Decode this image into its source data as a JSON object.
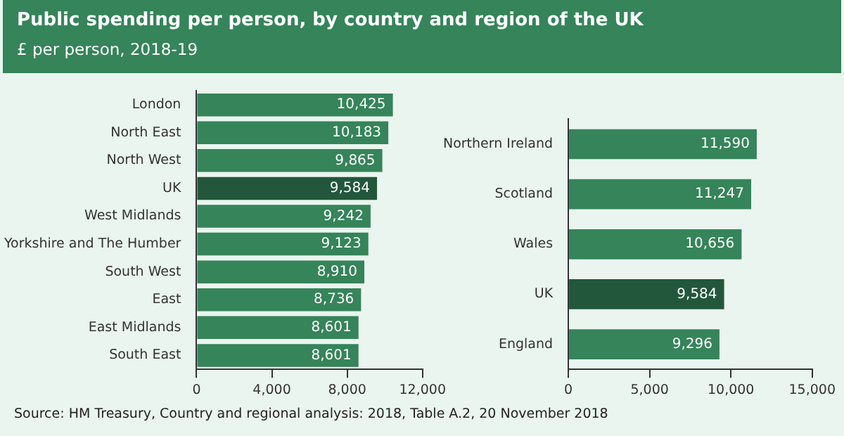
{
  "chart_data": [
    {
      "type": "bar",
      "orientation": "horizontal",
      "title": "Public spending per person, by country and region of the UK",
      "subtitle": "£ per person, 2018-19",
      "categories": [
        "London",
        "North East",
        "North West",
        "UK",
        "West Midlands",
        "Yorkshire and The Humber",
        "South West",
        "East",
        "East Midlands",
        "South East"
      ],
      "values": [
        10425,
        10183,
        9865,
        9584,
        9242,
        9123,
        8910,
        8736,
        8601,
        8601
      ],
      "value_labels": [
        "10,425",
        "10,183",
        "9,865",
        "9,584",
        "9,242",
        "9,123",
        "8,910",
        "8,736",
        "8,601",
        "8,601"
      ],
      "colors": [
        "#35845a",
        "#35845a",
        "#35845a",
        "#22573b",
        "#35845a",
        "#35845a",
        "#35845a",
        "#35845a",
        "#35845a",
        "#35845a"
      ],
      "xlim": [
        0,
        12000
      ],
      "xticks": [
        0,
        {
          "value": 4000,
          "label": "4,000"
        },
        {
          "value": 8000,
          "label": "8,000"
        },
        {
          "value": 12000,
          "label": "12,000"
        }
      ],
      "grid": false,
      "legend": false,
      "annotations": [
        "Source: HM Treasury, Country and regional analysis: 2018, Table A.2, 20 November 2018"
      ]
    },
    {
      "type": "bar",
      "orientation": "horizontal",
      "categories": [
        "Northern Ireland",
        "Scotland",
        "Wales",
        "UK",
        "England"
      ],
      "values": [
        11590,
        11247,
        10656,
        9584,
        9296
      ],
      "value_labels": [
        "11,590",
        "11,247",
        "10,656",
        "9,584",
        "9,296"
      ],
      "colors": [
        "#35845a",
        "#35845a",
        "#35845a",
        "#22573b",
        "#35845a"
      ],
      "xlim": [
        0,
        15000
      ],
      "xticks": [
        0,
        {
          "value": 5000,
          "label": "5,000"
        },
        {
          "value": 10000,
          "label": "10,000"
        },
        {
          "value": 15000,
          "label": "15,000"
        }
      ],
      "grid": false,
      "legend": false
    }
  ]
}
